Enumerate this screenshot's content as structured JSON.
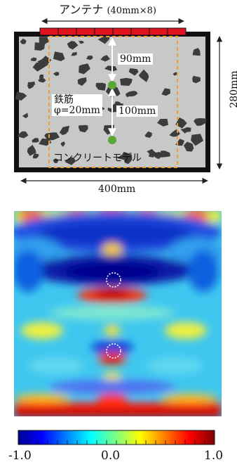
{
  "labels": {
    "antenna": "アンテナ",
    "antenna_spec": "(40mm×8)",
    "gap_top": "90mm",
    "rebar_name": "鉄筋",
    "rebar_diameter": "φ=20mm",
    "gap_between": "100mm",
    "model": "コンクリートモデル",
    "width": "400mm",
    "height": "280mm"
  },
  "colorbar": {
    "min_label": "-1.0",
    "mid_label": "0.0",
    "max_label": "1.0"
  },
  "colors": {
    "antenna": "#e0141e",
    "rebar": "#5aa83a",
    "concrete": "#c8c8c8",
    "aggregate": "#3c3c3c",
    "guide": "#f0a030"
  }
}
